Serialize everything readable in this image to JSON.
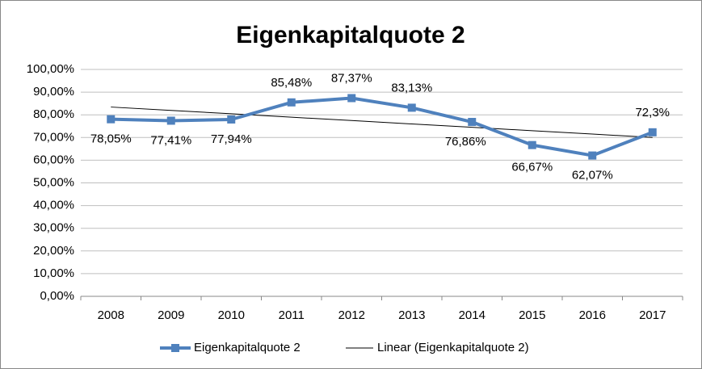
{
  "chart_data": {
    "type": "line",
    "title": "Eigenkapitalquote 2",
    "categories": [
      "2008",
      "2009",
      "2010",
      "2011",
      "2012",
      "2013",
      "2014",
      "2015",
      "2016",
      "2017"
    ],
    "series": [
      {
        "name": "Eigenkapitalquote 2",
        "color": "#4f81bd",
        "marker": "square",
        "values": [
          78.05,
          77.41,
          77.94,
          85.48,
          87.37,
          83.13,
          76.86,
          66.67,
          62.07,
          72.3
        ],
        "value_labels": [
          "78,05%",
          "77,41%",
          "77,94%",
          "85,48%",
          "87,37%",
          "83,13%",
          "76,86%",
          "66,67%",
          "62,07%",
          "72,3%"
        ]
      },
      {
        "name": "Linear (Eigenkapitalquote 2)",
        "color": "#000000",
        "values": [
          83.43,
          81.94,
          80.45,
          78.96,
          77.47,
          75.98,
          74.49,
          73.01,
          71.52,
          70.03
        ]
      }
    ],
    "ylim": [
      0,
      100
    ],
    "yticks": [
      {
        "value": 0,
        "label": "0,00%"
      },
      {
        "value": 10,
        "label": "10,00%"
      },
      {
        "value": 20,
        "label": "20,00%"
      },
      {
        "value": 30,
        "label": "30,00%"
      },
      {
        "value": 40,
        "label": "40,00%"
      },
      {
        "value": 50,
        "label": "50,00%"
      },
      {
        "value": 60,
        "label": "60,00%"
      },
      {
        "value": 70,
        "label": "70,00%"
      },
      {
        "value": 80,
        "label": "80,00%"
      },
      {
        "value": 90,
        "label": "90,00%"
      },
      {
        "value": 100,
        "label": "100,00%"
      }
    ],
    "grid": true,
    "legend": "bottom"
  }
}
